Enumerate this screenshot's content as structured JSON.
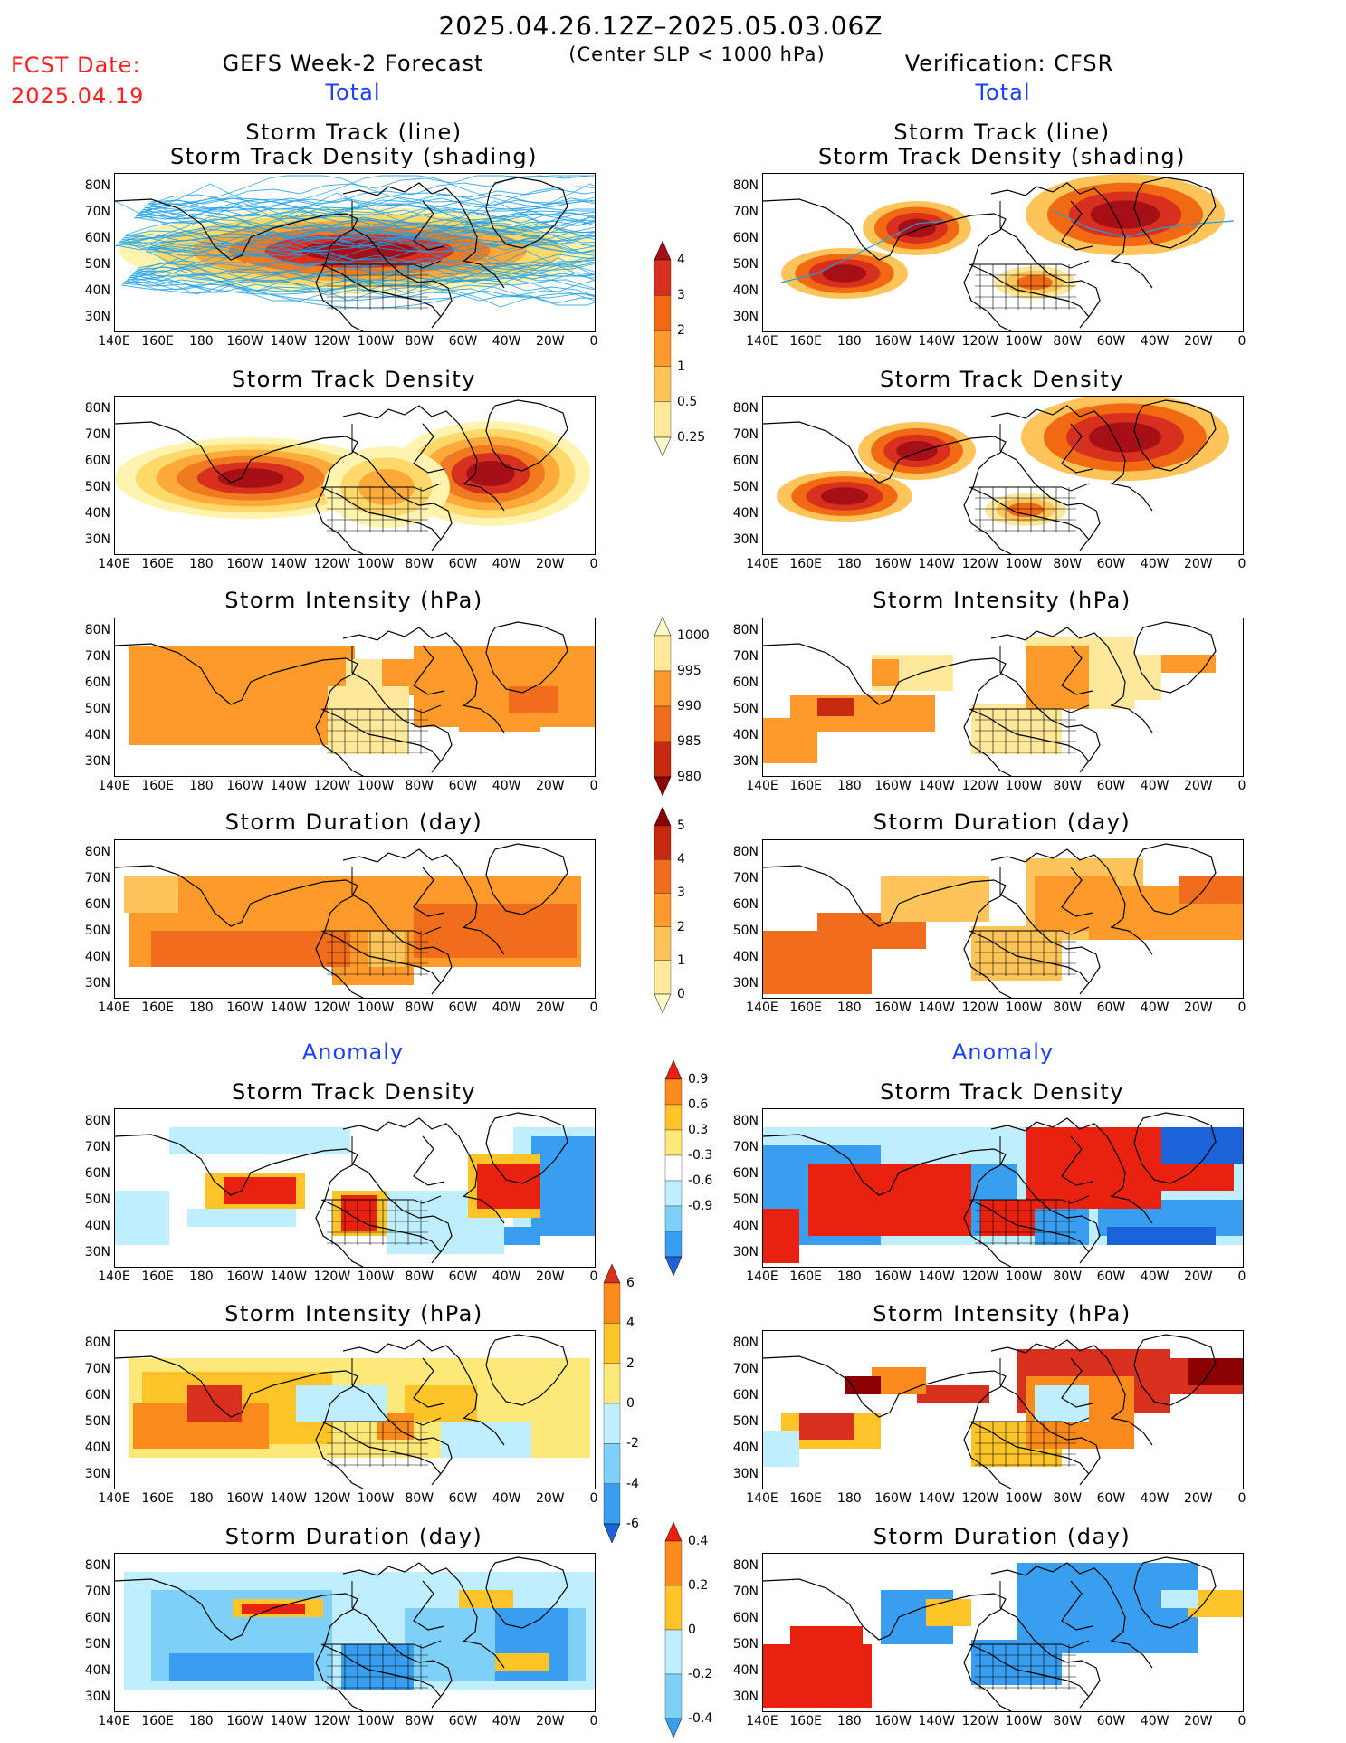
{
  "header": {
    "date_range": "2025.04.26.12Z–2025.05.03.06Z",
    "fcst_label": "FCST Date:",
    "fcst_date": "2025.04.19",
    "left_title": "GEFS Week-2 Forecast",
    "center_note": "(Center SLP < 1000 hPa)",
    "right_title": "Verification: CFSR"
  },
  "sections": {
    "total": "Total",
    "anomaly": "Anomaly"
  },
  "panel_titles": {
    "track_line": "Storm Track (line)",
    "track_density_shading": "Storm Track Density (shading)",
    "track_density": "Storm Track Density",
    "intensity": "Storm Intensity (hPa)",
    "duration": "Storm Duration (day)"
  },
  "axes": {
    "lat_labels": [
      "80N",
      "70N",
      "60N",
      "50N",
      "40N",
      "30N"
    ],
    "lon_labels": [
      "140E",
      "160E",
      "180",
      "160W",
      "140W",
      "120W",
      "100W",
      "80W",
      "60W",
      "40W",
      "20W",
      "0"
    ]
  },
  "colorbars": {
    "density": {
      "labels": [
        "4",
        "3",
        "2",
        "1",
        "0.5",
        "0.25"
      ],
      "colors": [
        "#a50f15",
        "#d7301f",
        "#f16913",
        "#fd9a2a",
        "#fdc45a",
        "#fee89a",
        "#fff8c8"
      ]
    },
    "intensity": {
      "labels": [
        "1000",
        "995",
        "990",
        "985",
        "980"
      ],
      "colors": [
        "#fff8c8",
        "#fee89a",
        "#fd9a2a",
        "#f06d1c",
        "#c62a10",
        "#8b0000"
      ]
    },
    "duration": {
      "labels": [
        "5",
        "4",
        "3",
        "2",
        "1",
        "0"
      ],
      "colors": [
        "#8b0000",
        "#c62a10",
        "#f06d1c",
        "#fd9a2a",
        "#fdc45a",
        "#fee89a",
        "#fff8c8"
      ]
    },
    "anom_density": {
      "labels": [
        "0.9",
        "0.6",
        "0.3",
        "-0.3",
        "-0.6",
        "-0.9"
      ],
      "colors": [
        "#e8220f",
        "#fb8a1c",
        "#fdc42a",
        "#fde87a",
        "#ffffff",
        "#bfeeff",
        "#7fd0f8",
        "#3a9ef0",
        "#1c62d8"
      ]
    },
    "anom_intensity": {
      "labels": [
        "6",
        "4",
        "2",
        "0",
        "-2",
        "-4",
        "-6"
      ],
      "colors": [
        "#d7301f",
        "#fb8a1c",
        "#fdc42a",
        "#fde87a",
        "#bfeeff",
        "#7fd0f8",
        "#3a9ef0",
        "#1c62d8"
      ]
    },
    "anom_duration": {
      "labels": [
        "0.4",
        "0.2",
        "0",
        "-0.2",
        "-0.4"
      ],
      "colors": [
        "#e8220f",
        "#fb8a1c",
        "#fdc42a",
        "#bfeeff",
        "#7fd0f8",
        "#3a9ef0"
      ]
    }
  },
  "legend_colors": {
    "track_line": "#1ea0e6"
  }
}
